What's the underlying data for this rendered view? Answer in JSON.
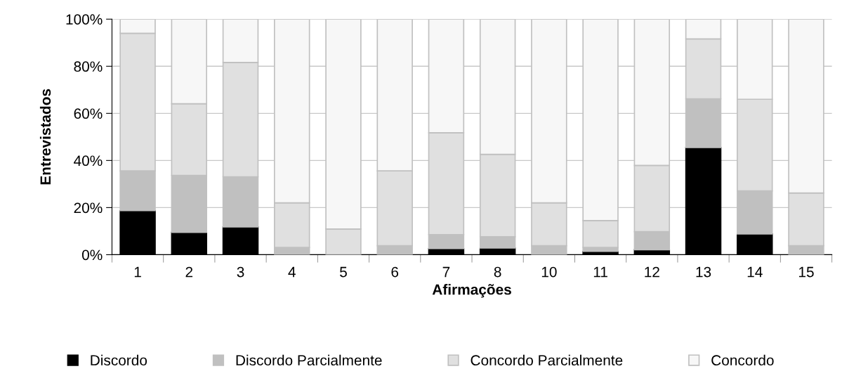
{
  "chart_data": {
    "type": "bar",
    "stacked": true,
    "xlabel": "Afirmações",
    "ylabel": "Entrevistados",
    "categories": [
      "1",
      "2",
      "3",
      "4",
      "5",
      "6",
      "7",
      "8",
      "10",
      "11",
      "12",
      "13",
      "14",
      "15"
    ],
    "series": [
      {
        "name": "Discordo",
        "color": "#000000",
        "values": [
          18.7,
          9.5,
          11.8,
          0,
          0,
          null,
          2.6,
          2.8,
          0,
          1.4,
          2.1,
          45.5,
          8.8,
          null
        ]
      },
      {
        "name": "Discordo Parcialmente",
        "color": "#c0c0c0",
        "values": [
          16.9,
          24.2,
          21.3,
          3.1,
          null,
          3.8,
          5.9,
          4.8,
          3.8,
          1.7,
          7.7,
          20.7,
          18.3,
          3.8
        ]
      },
      {
        "name": "Concordo Parcialmente",
        "color": "#e0e0e0",
        "values": [
          58.4,
          30.4,
          48.5,
          18.9,
          10.9,
          31.8,
          43.3,
          35.0,
          18.2,
          11.4,
          28.1,
          25.4,
          38.9,
          22.4
        ]
      },
      {
        "name": "Concordo",
        "color": "#f7f7f7",
        "values": [
          6.0,
          35.9,
          18.4,
          78.0,
          89.1,
          64.4,
          48.2,
          57.4,
          78.0,
          85.5,
          62.1,
          8.4,
          34.0,
          73.8
        ]
      }
    ],
    "ylim": [
      0,
      100
    ],
    "yticks": [
      {
        "value": 0,
        "label": "0%"
      },
      {
        "value": 20,
        "label": "20%"
      },
      {
        "value": 40,
        "label": "40%"
      },
      {
        "value": 60,
        "label": "60%"
      },
      {
        "value": 80,
        "label": "80%"
      },
      {
        "value": 100,
        "label": "100%"
      }
    ],
    "grid": "y",
    "legend": "bottom"
  }
}
